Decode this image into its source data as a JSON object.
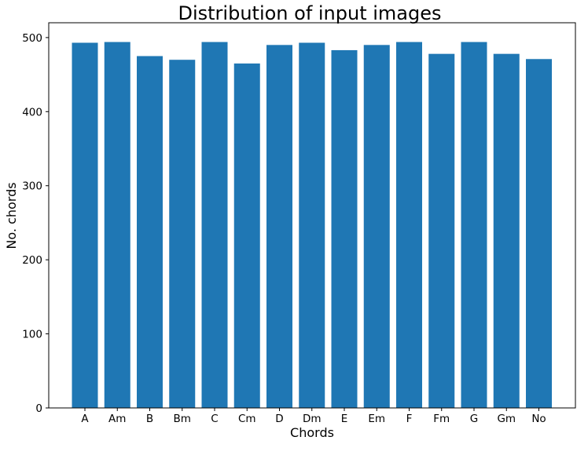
{
  "chart_data": {
    "type": "bar",
    "title": "Distribution of input images",
    "xlabel": "Chords",
    "ylabel": "No. chords",
    "categories": [
      "A",
      "Am",
      "B",
      "Bm",
      "C",
      "Cm",
      "D",
      "Dm",
      "E",
      "Em",
      "F",
      "Fm",
      "G",
      "Gm",
      "No"
    ],
    "values": [
      493,
      494,
      475,
      470,
      494,
      465,
      490,
      493,
      483,
      490,
      494,
      478,
      494,
      478,
      471
    ],
    "ylim": [
      0,
      520
    ],
    "yticks": [
      0,
      100,
      200,
      300,
      400,
      500
    ],
    "bar_color": "#1f77b4",
    "grid": false,
    "legend": "none"
  }
}
